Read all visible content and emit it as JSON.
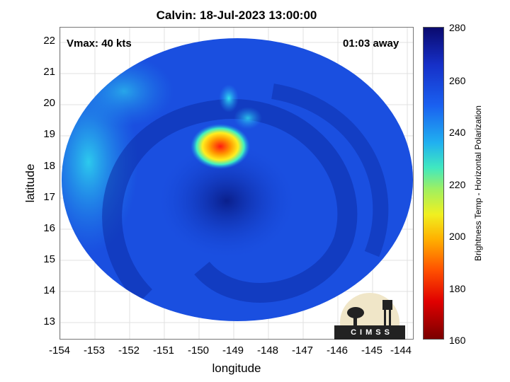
{
  "title": "Calvin: 18-Jul-2023 13:00:00",
  "vmax": "Vmax: 40 kts",
  "away": "01:03 away",
  "xlabel": "longitude",
  "ylabel": "latitude",
  "colorbar_label": "Brightness Temp - Horizontal Polarization",
  "logo_text": "CIMSS",
  "x_ticks": [
    "-154",
    "-153",
    "-152",
    "-151",
    "-150",
    "-149",
    "-148",
    "-147",
    "-146",
    "-145",
    "-144"
  ],
  "y_ticks": [
    "22",
    "21",
    "20",
    "19",
    "18",
    "17",
    "16",
    "15",
    "14",
    "13"
  ],
  "colorbar_ticks": [
    "280",
    "260",
    "240",
    "220",
    "200",
    "180",
    "160"
  ],
  "colors": {
    "background_swath": "#1a4fe0",
    "cold_core": "#ff2020",
    "warm_ring": "#0a2080"
  }
}
